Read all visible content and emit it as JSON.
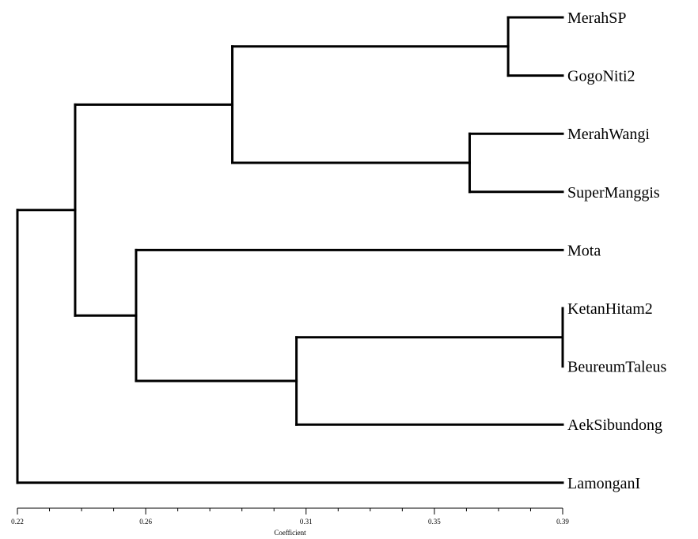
{
  "diagram": {
    "type": "dendrogram",
    "orientation": "left-to-right",
    "leaves": [
      "MerahSP",
      "GogoNiti2",
      "MerahWangi",
      "SuperManggis",
      "Mota",
      "KetanHitam2",
      "BeureumTaleus",
      "AekSibundong",
      "LamonganI"
    ],
    "merges": [
      {
        "id": "c1",
        "children": [
          "KetanHitam2",
          "BeureumTaleus"
        ],
        "height": 0.39
      },
      {
        "id": "c2",
        "children": [
          "MerahSP",
          "GogoNiti2"
        ],
        "height": 0.373
      },
      {
        "id": "c3",
        "children": [
          "MerahWangi",
          "SuperManggis"
        ],
        "height": 0.361
      },
      {
        "id": "c4",
        "children": [
          "c1",
          "AekSibundong"
        ],
        "height": 0.307
      },
      {
        "id": "c5",
        "children": [
          "c2",
          "c3"
        ],
        "height": 0.287
      },
      {
        "id": "c6",
        "children": [
          "Mota",
          "c4"
        ],
        "height": 0.257
      },
      {
        "id": "c7",
        "children": [
          "c5",
          "c6"
        ],
        "height": 0.238
      },
      {
        "id": "c8",
        "children": [
          "c7",
          "LamonganI"
        ],
        "height": 0.22
      }
    ],
    "root": "c8"
  },
  "axis": {
    "title": "Coefficient",
    "range": [
      0.22,
      0.39
    ],
    "major_ticks": [
      {
        "value": 0.22,
        "label": "0.22"
      },
      {
        "value": 0.26,
        "label": "0.26"
      },
      {
        "value": 0.31,
        "label": "0.31"
      },
      {
        "value": 0.35,
        "label": "0.35"
      },
      {
        "value": 0.39,
        "label": "0.39"
      }
    ],
    "minor_step": 0.01
  }
}
